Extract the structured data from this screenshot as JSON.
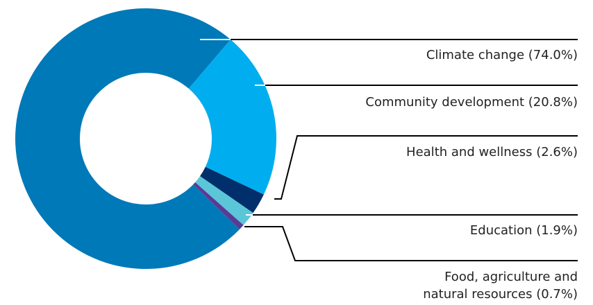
{
  "chart_data": {
    "type": "donut",
    "categories": [
      "Community development (20.8%)",
      "Health and wellness (2.6%)",
      "Education (1.9%)",
      "Food, agriculture and natural resources (0.7%)",
      "Climate change (74.0%)"
    ],
    "values": [
      20.8,
      2.6,
      1.9,
      0.7,
      74.0
    ],
    "colors": [
      "#00aeef",
      "#002f6c",
      "#5bc6d8",
      "#5b3a96",
      "#0079b8"
    ]
  }
}
